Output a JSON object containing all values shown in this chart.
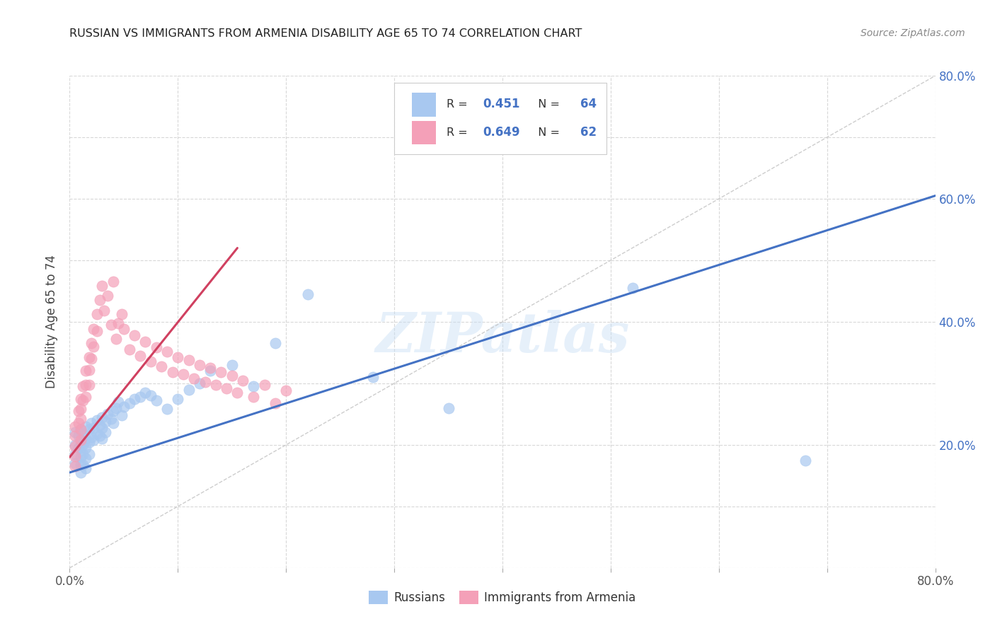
{
  "title": "RUSSIAN VS IMMIGRANTS FROM ARMENIA DISABILITY AGE 65 TO 74 CORRELATION CHART",
  "source": "Source: ZipAtlas.com",
  "ylabel": "Disability Age 65 to 74",
  "watermark": "ZIPatlas",
  "xlim": [
    0.0,
    0.8
  ],
  "ylim": [
    0.0,
    0.8
  ],
  "legend_R1": "R = 0.451",
  "legend_N1": "N = 64",
  "legend_R2": "R = 0.649",
  "legend_N2": "N = 62",
  "color_blue": "#a8c8f0",
  "color_pink": "#f4a0b8",
  "color_blue_line": "#4472c4",
  "color_pink_line": "#d04060",
  "color_diag": "#c8c8c8",
  "title_color": "#222222",
  "source_color": "#888888",
  "background_color": "#ffffff",
  "grid_color": "#d8d8d8",
  "russians_x": [
    0.005,
    0.005,
    0.005,
    0.005,
    0.008,
    0.008,
    0.01,
    0.01,
    0.01,
    0.01,
    0.01,
    0.01,
    0.012,
    0.012,
    0.012,
    0.012,
    0.015,
    0.015,
    0.015,
    0.015,
    0.015,
    0.018,
    0.018,
    0.018,
    0.02,
    0.02,
    0.022,
    0.022,
    0.025,
    0.025,
    0.028,
    0.028,
    0.03,
    0.03,
    0.03,
    0.033,
    0.033,
    0.035,
    0.038,
    0.04,
    0.04,
    0.043,
    0.045,
    0.048,
    0.05,
    0.055,
    0.06,
    0.065,
    0.07,
    0.075,
    0.08,
    0.09,
    0.1,
    0.11,
    0.12,
    0.13,
    0.15,
    0.17,
    0.19,
    0.22,
    0.28,
    0.35,
    0.52,
    0.68
  ],
  "russians_y": [
    0.22,
    0.2,
    0.185,
    0.17,
    0.215,
    0.195,
    0.225,
    0.205,
    0.195,
    0.18,
    0.168,
    0.155,
    0.218,
    0.2,
    0.185,
    0.168,
    0.23,
    0.21,
    0.195,
    0.178,
    0.162,
    0.225,
    0.205,
    0.185,
    0.235,
    0.212,
    0.228,
    0.208,
    0.24,
    0.218,
    0.232,
    0.215,
    0.245,
    0.228,
    0.21,
    0.238,
    0.22,
    0.25,
    0.242,
    0.255,
    0.235,
    0.26,
    0.27,
    0.248,
    0.262,
    0.268,
    0.275,
    0.278,
    0.285,
    0.28,
    0.272,
    0.258,
    0.275,
    0.29,
    0.3,
    0.32,
    0.33,
    0.295,
    0.365,
    0.445,
    0.31,
    0.26,
    0.455,
    0.175
  ],
  "armenia_x": [
    0.005,
    0.005,
    0.005,
    0.005,
    0.005,
    0.008,
    0.008,
    0.01,
    0.01,
    0.01,
    0.01,
    0.01,
    0.012,
    0.012,
    0.015,
    0.015,
    0.015,
    0.018,
    0.018,
    0.018,
    0.02,
    0.02,
    0.022,
    0.022,
    0.025,
    0.025,
    0.028,
    0.03,
    0.032,
    0.035,
    0.038,
    0.04,
    0.043,
    0.045,
    0.048,
    0.05,
    0.055,
    0.06,
    0.065,
    0.07,
    0.075,
    0.08,
    0.085,
    0.09,
    0.095,
    0.1,
    0.105,
    0.11,
    0.115,
    0.12,
    0.125,
    0.13,
    0.135,
    0.14,
    0.145,
    0.15,
    0.155,
    0.16,
    0.17,
    0.18,
    0.19,
    0.2
  ],
  "armenia_y": [
    0.23,
    0.215,
    0.198,
    0.182,
    0.165,
    0.255,
    0.235,
    0.275,
    0.258,
    0.242,
    0.225,
    0.208,
    0.295,
    0.272,
    0.32,
    0.298,
    0.278,
    0.342,
    0.322,
    0.298,
    0.365,
    0.34,
    0.388,
    0.36,
    0.412,
    0.385,
    0.435,
    0.458,
    0.418,
    0.442,
    0.395,
    0.465,
    0.372,
    0.398,
    0.412,
    0.388,
    0.355,
    0.378,
    0.345,
    0.368,
    0.335,
    0.358,
    0.328,
    0.352,
    0.318,
    0.342,
    0.315,
    0.338,
    0.308,
    0.33,
    0.302,
    0.325,
    0.298,
    0.318,
    0.292,
    0.312,
    0.285,
    0.305,
    0.278,
    0.298,
    0.268,
    0.288
  ],
  "blue_line_x": [
    0.0,
    0.8
  ],
  "blue_line_y": [
    0.155,
    0.605
  ],
  "pink_line_x": [
    0.0,
    0.155
  ],
  "pink_line_y": [
    0.18,
    0.52
  ]
}
